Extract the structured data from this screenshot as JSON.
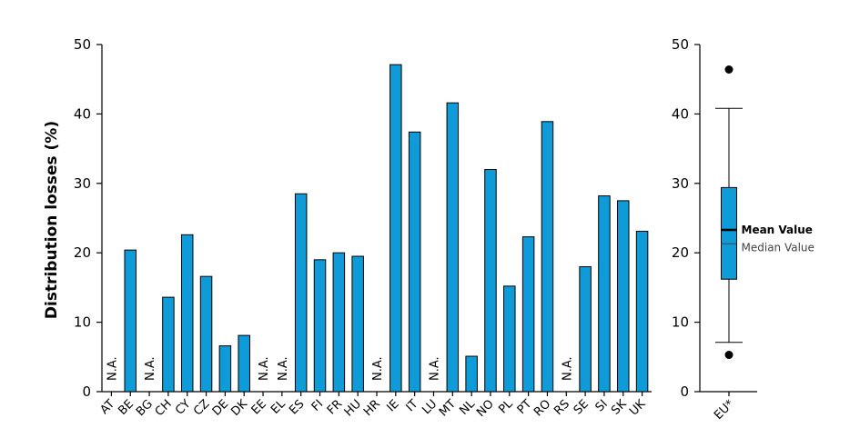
{
  "chart_data": [
    {
      "type": "bar",
      "ylabel": "Distribution losses (%)",
      "ylim": [
        0,
        50
      ],
      "yticks": [
        0,
        10,
        20,
        30,
        40,
        50
      ],
      "grid": false,
      "na_label": "N.A.",
      "bar_color": "#0f9bd7",
      "categories": [
        "AT",
        "BE",
        "BG",
        "CH",
        "CY",
        "CZ",
        "DE",
        "DK",
        "EE",
        "EL",
        "ES",
        "FI",
        "FR",
        "HU",
        "HR",
        "IE",
        "IT",
        "LU",
        "MT",
        "NL",
        "NO",
        "PL",
        "PT",
        "RO",
        "RS",
        "SE",
        "SI",
        "SK",
        "UK"
      ],
      "values": [
        null,
        20.4,
        null,
        13.6,
        22.6,
        16.6,
        6.6,
        8.1,
        null,
        null,
        28.5,
        19.0,
        20.0,
        19.5,
        null,
        47.1,
        37.4,
        null,
        41.6,
        5.1,
        32.0,
        15.2,
        22.3,
        38.9,
        null,
        18.0,
        28.2,
        27.5,
        23.1
      ]
    },
    {
      "type": "box",
      "category": "EU*",
      "ylim": [
        0,
        50
      ],
      "yticks": [
        0,
        10,
        20,
        30,
        40,
        50
      ],
      "whisker_low": 7.1,
      "q1": 16.2,
      "median": 21.3,
      "mean": 23.3,
      "q3": 29.4,
      "whisker_high": 40.8,
      "outliers": [
        5.3,
        46.4
      ],
      "mean_label": "Mean Value",
      "median_label": "Median Value",
      "box_color": "#0f9bd7"
    }
  ]
}
